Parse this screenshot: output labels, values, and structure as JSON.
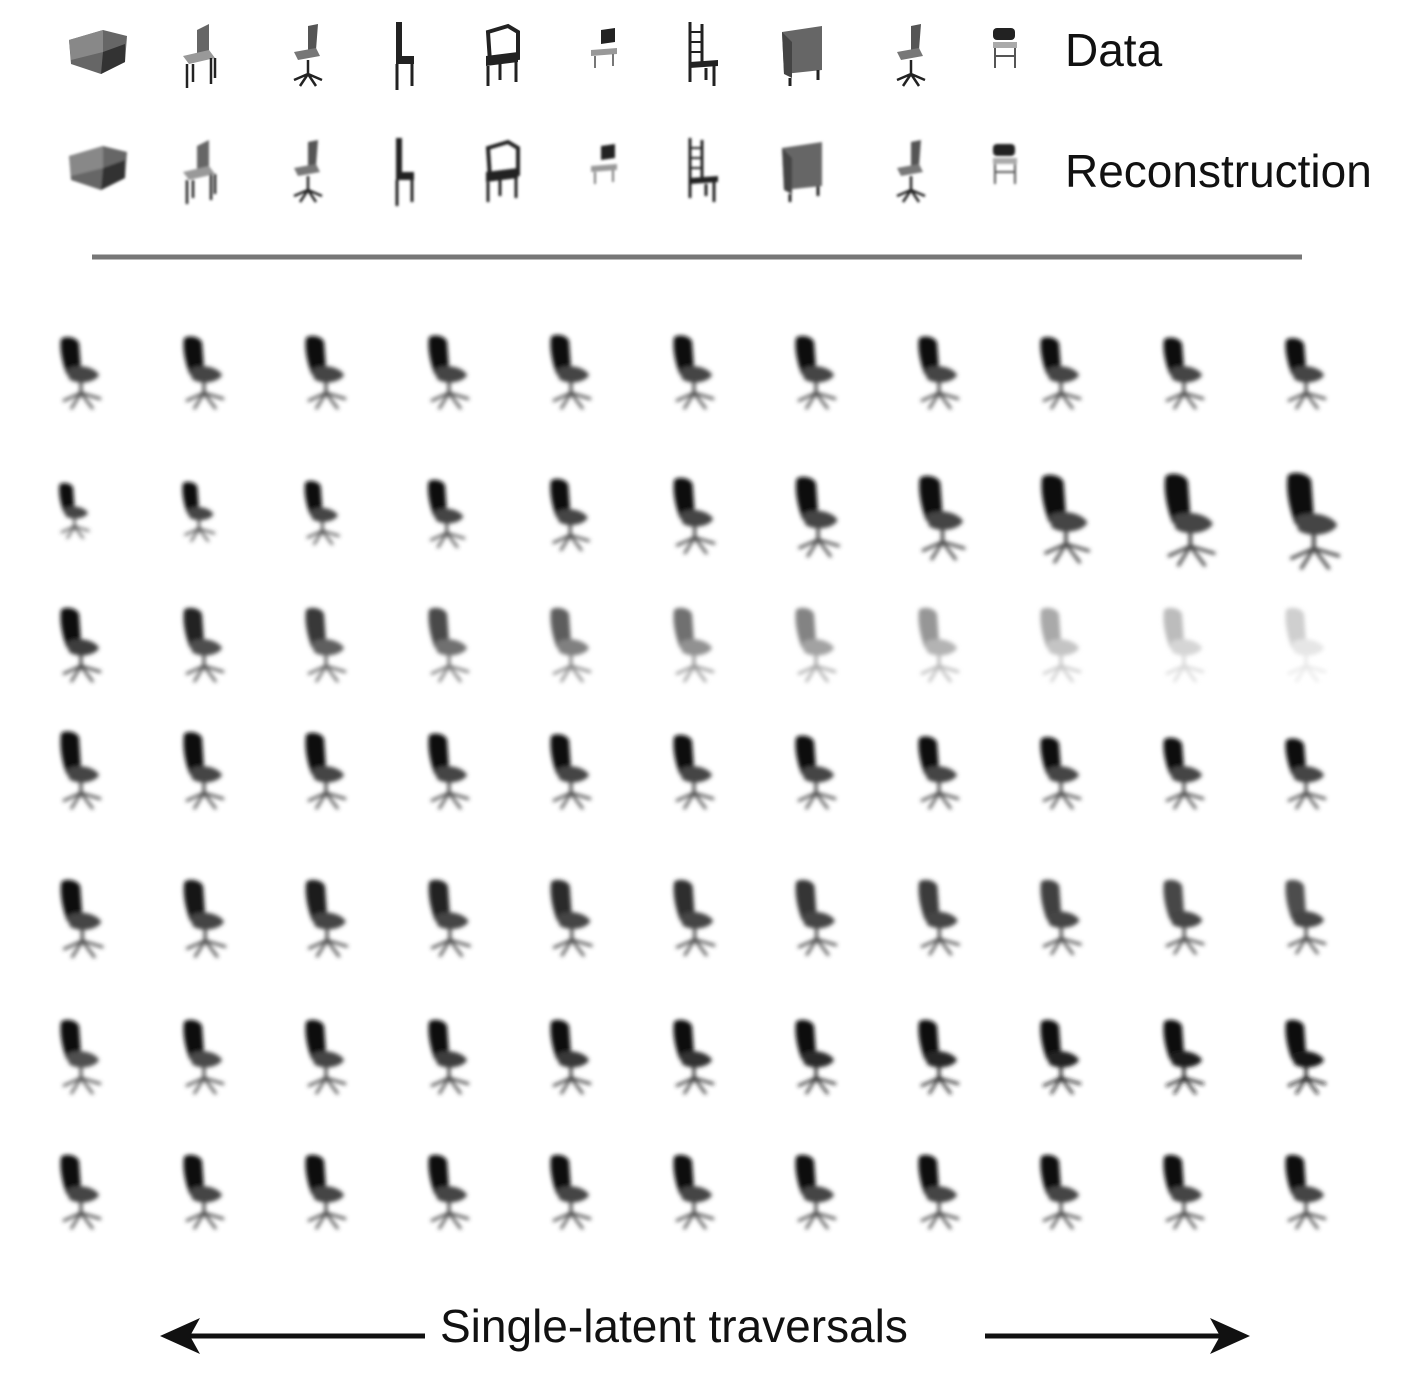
{
  "labels": {
    "data": "Data",
    "reconstruction": "Reconstruction",
    "traversal_caption": "Single-latent traversals"
  },
  "top_rows": [
    {
      "row": "data",
      "items": [
        "sofa-chair",
        "side-chair",
        "office-chair",
        "tall-back-chair",
        "armchair",
        "small-chair",
        "ladder-back-chair",
        "upholstered-chair",
        "office-chair",
        "stool"
      ]
    },
    {
      "row": "reconstruction",
      "items": [
        "sofa-chair",
        "side-chair",
        "office-chair",
        "tall-back-chair",
        "armchair",
        "small-chair",
        "ladder-back-chair",
        "upholstered-chair",
        "office-chair",
        "stool"
      ]
    }
  ],
  "traversal_grid": {
    "rows": 7,
    "columns": 11
  },
  "colors": {
    "divider": "#777777",
    "ink": "#111111"
  }
}
